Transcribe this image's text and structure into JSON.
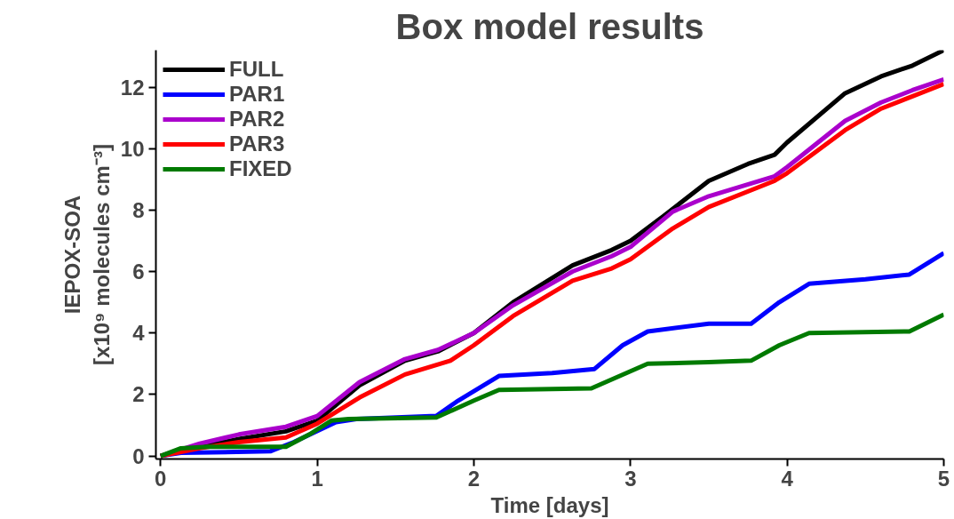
{
  "chart_data": {
    "type": "line",
    "title": "Box model results",
    "xlabel": "Time [days]",
    "ylabel": "IEPOX-SOA\n[x10⁹ molecules cm⁻³]",
    "xlim": [
      -0.03,
      5.0
    ],
    "ylim": [
      -0.1,
      13.2
    ],
    "xticks": [
      0,
      1,
      2,
      3,
      4,
      5
    ],
    "yticks": [
      0,
      2,
      4,
      6,
      8,
      10,
      12
    ],
    "grid": false,
    "legend": "top left",
    "line_style": "solid",
    "series": [
      {
        "name": "FULL",
        "color": "#000000",
        "x": [
          0,
          0.25,
          0.5,
          0.8,
          1.0,
          1.27,
          1.56,
          1.77,
          2.0,
          2.25,
          2.63,
          2.88,
          3.0,
          3.21,
          3.5,
          3.75,
          3.92,
          4.0,
          4.37,
          4.6,
          4.8,
          5.0
        ],
        "values": [
          0,
          0.3,
          0.55,
          0.8,
          1.15,
          2.3,
          3.1,
          3.4,
          4.0,
          5.0,
          6.2,
          6.7,
          7.0,
          7.8,
          8.95,
          9.5,
          9.8,
          10.2,
          11.8,
          12.35,
          12.7,
          13.2
        ]
      },
      {
        "name": "PAR1",
        "color": "#0000ff",
        "x": [
          0,
          0.13,
          0.7,
          0.85,
          1.12,
          1.25,
          1.76,
          1.9,
          2.16,
          2.5,
          2.77,
          2.95,
          3.11,
          3.5,
          3.77,
          3.95,
          4.14,
          4.5,
          4.78,
          5.0
        ],
        "values": [
          0,
          0.1,
          0.15,
          0.45,
          1.1,
          1.2,
          1.3,
          1.8,
          2.6,
          2.7,
          2.83,
          3.6,
          4.05,
          4.3,
          4.3,
          5.0,
          5.6,
          5.75,
          5.9,
          6.6
        ]
      },
      {
        "name": "PAR2",
        "color": "#aa00cc",
        "x": [
          0,
          0.25,
          0.5,
          0.8,
          1.0,
          1.27,
          1.56,
          1.77,
          2.0,
          2.25,
          2.63,
          2.88,
          3.0,
          3.27,
          3.5,
          3.92,
          4.0,
          4.37,
          4.6,
          4.8,
          5.0
        ],
        "values": [
          0,
          0.4,
          0.7,
          0.95,
          1.3,
          2.4,
          3.15,
          3.45,
          4.0,
          4.9,
          6.0,
          6.5,
          6.8,
          7.95,
          8.45,
          9.1,
          9.4,
          10.9,
          11.5,
          11.9,
          12.25
        ]
      },
      {
        "name": "PAR3",
        "color": "#ff0000",
        "x": [
          0,
          0.25,
          0.5,
          0.8,
          1.0,
          1.27,
          1.56,
          1.85,
          2.0,
          2.25,
          2.63,
          2.88,
          3.0,
          3.27,
          3.5,
          3.92,
          4.0,
          4.37,
          4.6,
          4.8,
          5.0
        ],
        "values": [
          0,
          0.25,
          0.45,
          0.6,
          1.05,
          1.9,
          2.65,
          3.1,
          3.6,
          4.55,
          5.7,
          6.1,
          6.4,
          7.4,
          8.1,
          8.95,
          9.2,
          10.6,
          11.3,
          11.7,
          12.1
        ]
      },
      {
        "name": "FIXED",
        "color": "#007a00",
        "x": [
          0,
          0.13,
          0.3,
          0.8,
          0.95,
          1.09,
          1.2,
          1.76,
          2.0,
          2.16,
          2.75,
          3.11,
          3.5,
          3.77,
          3.95,
          4.14,
          4.78,
          5.0
        ],
        "values": [
          0,
          0.25,
          0.3,
          0.3,
          0.7,
          1.15,
          1.2,
          1.25,
          1.8,
          2.15,
          2.2,
          3.0,
          3.05,
          3.1,
          3.6,
          4.0,
          4.05,
          4.6
        ]
      }
    ]
  }
}
